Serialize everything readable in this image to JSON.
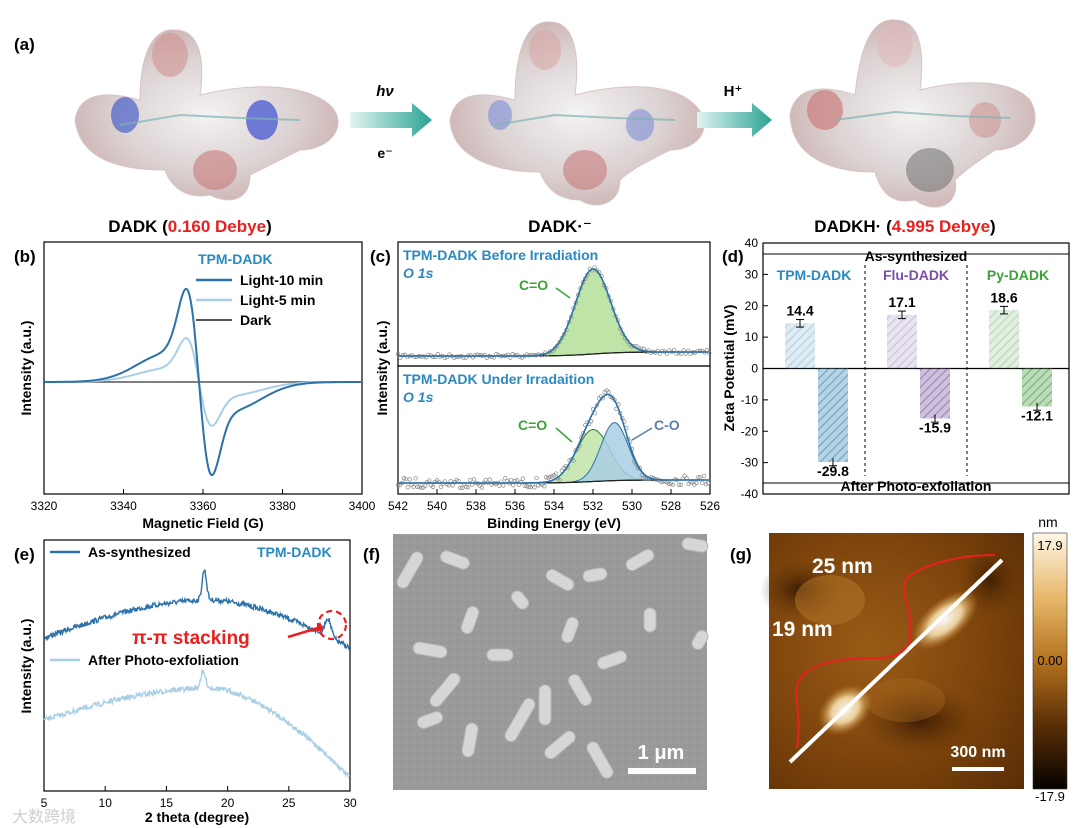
{
  "panel_a": {
    "label": "(a)",
    "step1": {
      "top": "hν",
      "bottom": "e⁻"
    },
    "step2": {
      "top": "H⁺"
    },
    "molecules": [
      {
        "name": "DADK (",
        "value": "0.160 Debye",
        "close": ")"
      },
      {
        "name": "DADK·⁻",
        "value": "",
        "close": ""
      },
      {
        "name": "DADKH· (",
        "value": "4.995 Debye",
        "close": ")"
      }
    ]
  },
  "panel_f": {
    "label": "(f)",
    "scalebar": "1 μm"
  },
  "panel_g": {
    "label": "(g)",
    "scalebar": "300 nm",
    "height_1": "25 nm",
    "height_2": "19 nm",
    "colorbar": {
      "unit": "nm",
      "max": "17.9",
      "mid": "0.00",
      "min": "-17.9"
    }
  },
  "watermark": "大数跨境",
  "colors": {
    "dark_blue": "#2a72a8",
    "light_blue": "#a8cfe6",
    "red": "#e8201f",
    "green_text": "#3ca338",
    "purple": "#7a4fa6"
  },
  "chart_data": [
    {
      "id": "b",
      "label": "(b)",
      "type": "line",
      "title": "TPM-DADK",
      "xlabel": "Magnetic Field (G)",
      "ylabel": "Intensity (a.u.)",
      "xlim": [
        3320,
        3400
      ],
      "xticks": [
        "3320",
        "3340",
        "3360",
        "3380",
        "3400"
      ],
      "series": [
        {
          "name": "Light-10 min",
          "color": "#2a72a8"
        },
        {
          "name": "Light-5 min",
          "color": "#a8cfe6"
        },
        {
          "name": "Dark",
          "color": "#555555"
        }
      ],
      "legend": "top-right",
      "grid": false
    },
    {
      "id": "c",
      "label": "(c)",
      "type": "line",
      "xlabel": "Binding Energy (eV)",
      "ylabel": "Intensity (a.u.)",
      "xlim": [
        542,
        526
      ],
      "xticks": [
        "542",
        "540",
        "538",
        "536",
        "534",
        "532",
        "530",
        "528",
        "526"
      ],
      "subplots": [
        {
          "title": "TPM-DADK Before Irradiation",
          "subtitle": "O 1s",
          "peaks": [
            {
              "name": "C=O",
              "center": 532.0
            }
          ]
        },
        {
          "title": "TPM-DADK Under Irradaition",
          "subtitle": "O 1s",
          "peaks": [
            {
              "name": "C=O",
              "center": 532.0
            },
            {
              "name": "C-O",
              "center": 530.9
            }
          ]
        }
      ]
    },
    {
      "id": "d",
      "label": "(d)",
      "type": "bar",
      "ylabel": "Zeta Potential (mV)",
      "ylim": [
        -40,
        40
      ],
      "yticks": [
        "40",
        "30",
        "20",
        "10",
        "0",
        "-10",
        "-20",
        "-30",
        "-40"
      ],
      "top_label": "As-synthesized",
      "bottom_label": "After Photo-exfoliation",
      "groups": [
        {
          "name": "TPM-DADK",
          "color": "#2a8ac0",
          "as_synth": 14.4,
          "after": -29.8,
          "as_synth_label": "14.4",
          "after_label": "-29.8"
        },
        {
          "name": "Flu-DADK",
          "color": "#7a4fa6",
          "as_synth": 17.1,
          "after": -15.9,
          "as_synth_label": "17.1",
          "after_label": "-15.9"
        },
        {
          "name": "Py-DADK",
          "color": "#3ca338",
          "as_synth": 18.6,
          "after": -12.1,
          "as_synth_label": "18.6",
          "after_label": "-12.1"
        }
      ]
    },
    {
      "id": "e",
      "label": "(e)",
      "type": "line",
      "title": "TPM-DADK",
      "xlabel": "2 theta (degree)",
      "ylabel": "Intensity (a.u.)",
      "xlim": [
        5,
        30
      ],
      "xticks": [
        "5",
        "10",
        "15",
        "20",
        "25",
        "30"
      ],
      "annotation": "π-π stacking",
      "series": [
        {
          "name": "As-synthesized",
          "color": "#2a72a8"
        },
        {
          "name": "After Photo-exfoliation",
          "color": "#a8cfe6"
        }
      ]
    }
  ]
}
